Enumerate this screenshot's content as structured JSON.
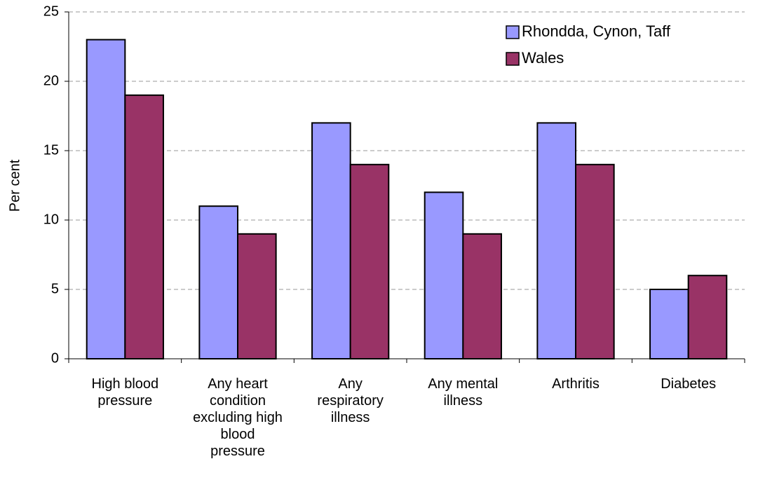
{
  "chart_data": {
    "type": "bar",
    "categories": [
      "High blood pressure",
      "Any heart condition excluding high blood pressure",
      "Any respiratory illness",
      "Any mental illness",
      "Arthritis",
      "Diabetes"
    ],
    "series": [
      {
        "name": "Rhondda, Cynon, Taff",
        "color": "#9999ff",
        "values": [
          23,
          11,
          17,
          12,
          17,
          5
        ]
      },
      {
        "name": "Wales",
        "color": "#993366",
        "values": [
          19,
          9,
          14,
          9,
          14,
          6
        ]
      }
    ],
    "y_label": "Per cent",
    "ylim": [
      0,
      25
    ],
    "yticks": [
      0,
      5,
      10,
      15,
      20,
      25
    ],
    "grid": true,
    "legend": "top-right"
  }
}
